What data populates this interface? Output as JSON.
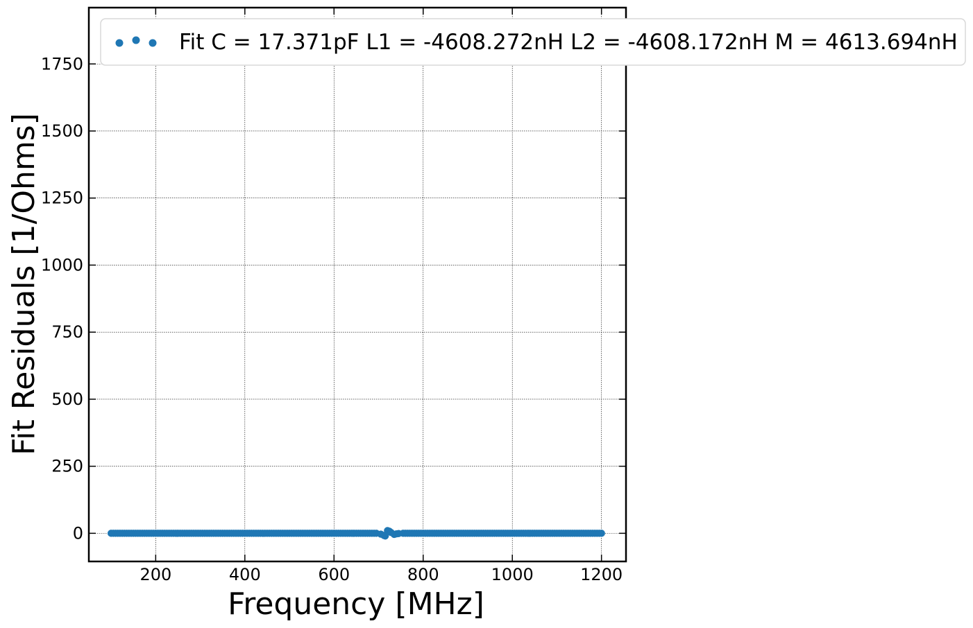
{
  "chart_data": {
    "type": "scatter",
    "title": "",
    "xlabel": "Frequency [MHz]",
    "ylabel": "Fit Residuals [1/Ohms]",
    "xlim": [
      50,
      1255
    ],
    "ylim": [
      -105,
      1960
    ],
    "grid": true,
    "legend_position": "top",
    "x_ticks": [
      {
        "value": 200,
        "label": "200"
      },
      {
        "value": 400,
        "label": "400"
      },
      {
        "value": 600,
        "label": "600"
      },
      {
        "value": 800,
        "label": "800"
      },
      {
        "value": 1000,
        "label": "1000"
      },
      {
        "value": 1200,
        "label": "1200"
      }
    ],
    "y_ticks": [
      {
        "value": 0,
        "label": "0"
      },
      {
        "value": 250,
        "label": "250"
      },
      {
        "value": 500,
        "label": "500"
      },
      {
        "value": 750,
        "label": "750"
      },
      {
        "value": 1000,
        "label": "1000"
      },
      {
        "value": 1250,
        "label": "1250"
      },
      {
        "value": 1500,
        "label": "1500"
      },
      {
        "value": 1750,
        "label": "1750"
      }
    ],
    "series": [
      {
        "name": "Fit C = 17.371pF L1 = -4608.272nH L2 = -4608.172nH  M = 4613.694nH",
        "color": "#1f77b4",
        "baseline": {
          "x_start": 100,
          "x_end": 1200,
          "step": 5,
          "y": 0
        },
        "points": [
          {
            "x": 705,
            "y": -3
          },
          {
            "x": 712,
            "y": -8
          },
          {
            "x": 715,
            "y": -10
          },
          {
            "x": 720,
            "y": 10
          },
          {
            "x": 724,
            "y": 8
          },
          {
            "x": 728,
            "y": 3
          },
          {
            "x": 730,
            "y": 1862
          },
          {
            "x": 735,
            "y": -4
          },
          {
            "x": 740,
            "y": -2
          },
          {
            "x": 745,
            "y": -1
          }
        ]
      }
    ]
  }
}
